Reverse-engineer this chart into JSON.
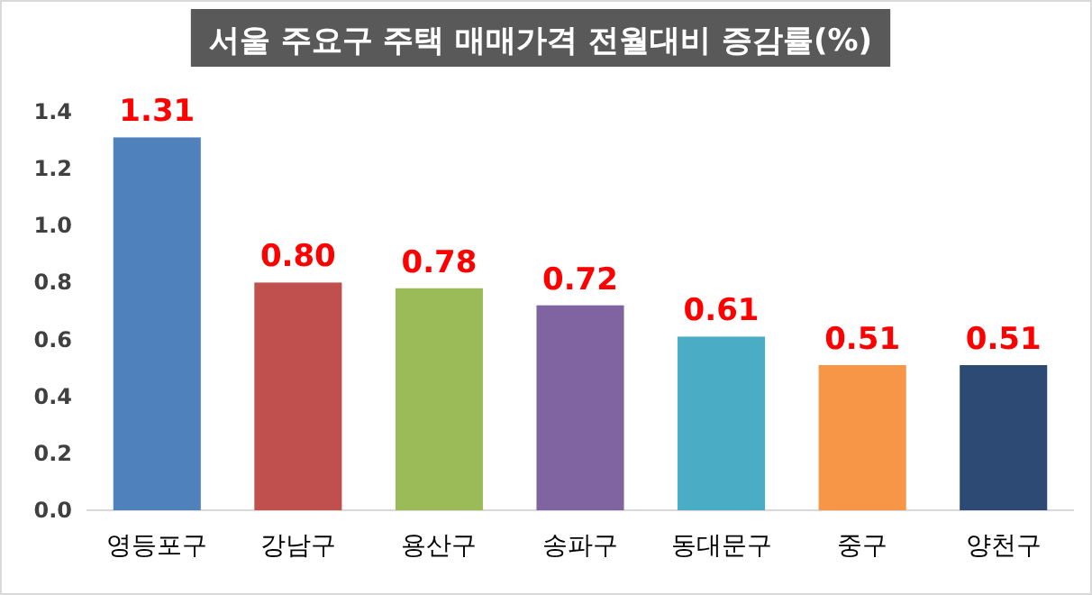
{
  "chart_data": {
    "type": "bar",
    "title": "서울 주요구 주택 매매가격 전월대비 증감률(%)",
    "categories": [
      "영등포구",
      "강남구",
      "용산구",
      "송파구",
      "동대문구",
      "중구",
      "양천구"
    ],
    "values": [
      1.31,
      0.8,
      0.78,
      0.72,
      0.61,
      0.51,
      0.51
    ],
    "value_labels": [
      "1.31",
      "0.80",
      "0.78",
      "0.72",
      "0.61",
      "0.51",
      "0.51"
    ],
    "colors": [
      "#4f81bd",
      "#c0504d",
      "#9bbb59",
      "#8064a2",
      "#4bacc6",
      "#f79646",
      "#2c4a74"
    ],
    "ylim": [
      0,
      1.4
    ],
    "yticks": [
      {
        "value": 0,
        "label": "0.0"
      },
      {
        "value": 0.2,
        "label": "0.2"
      },
      {
        "value": 0.4,
        "label": "0.4"
      },
      {
        "value": 0.6,
        "label": "0.6"
      },
      {
        "value": 0.8,
        "label": "0.8"
      },
      {
        "value": 1,
        "label": "1.0"
      },
      {
        "value": 1.2,
        "label": "1.2"
      },
      {
        "value": 1.4,
        "label": "1.4"
      }
    ],
    "grid": false
  }
}
